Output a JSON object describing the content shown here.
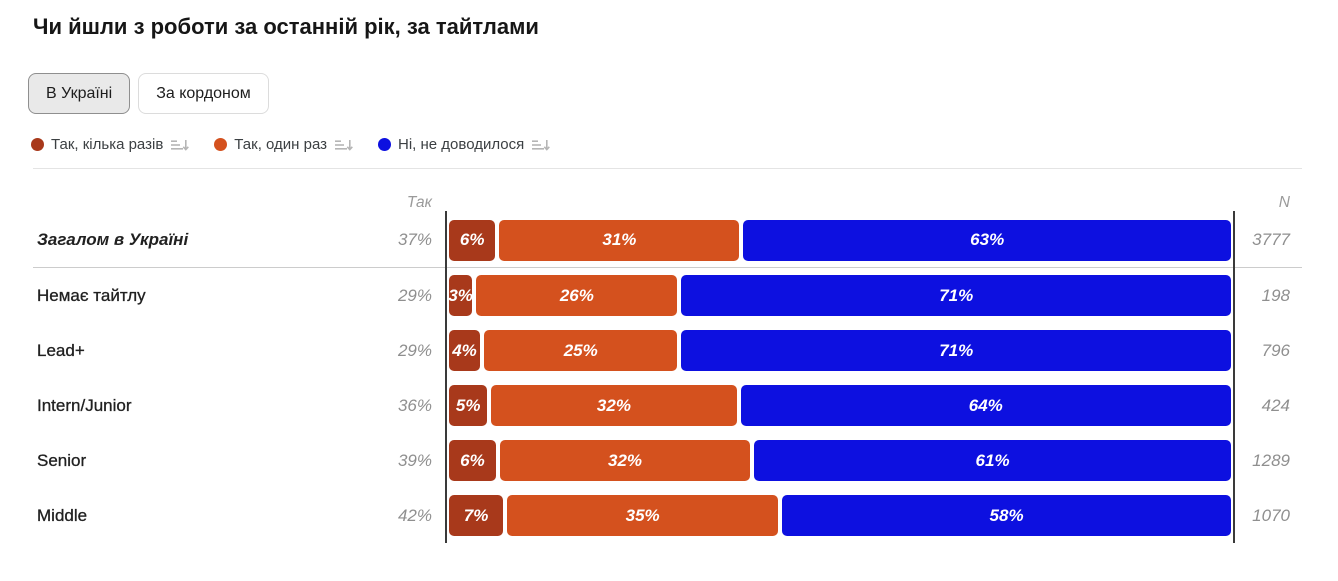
{
  "title": "Чи йшли з роботи за останній рік, за тайтлами",
  "tabs": [
    {
      "label": "В Україні",
      "active": true
    },
    {
      "label": "За кордоном",
      "active": false
    }
  ],
  "legend": [
    {
      "label": "Так, кілька разів",
      "color": "#a8391b"
    },
    {
      "label": "Так, один раз",
      "color": "#d4511e"
    },
    {
      "label": "Ні, не доводилося",
      "color": "#0d10e0"
    }
  ],
  "columns": {
    "tak_header": "Так",
    "n_header": "N"
  },
  "chart_data": {
    "type": "bar",
    "stacked": true,
    "orientation": "horizontal",
    "xlim": [
      0,
      100
    ],
    "categories": [
      "Загалом в Україні",
      "Немає тайтлу",
      "Lead+",
      "Intern/Junior",
      "Senior",
      "Middle"
    ],
    "tak_totals": [
      "37%",
      "29%",
      "29%",
      "36%",
      "39%",
      "42%"
    ],
    "series": [
      {
        "name": "Так, кілька разів",
        "color": "#a8391b",
        "values": [
          6,
          3,
          4,
          5,
          6,
          7
        ]
      },
      {
        "name": "Так, один раз",
        "color": "#d4511e",
        "values": [
          31,
          26,
          25,
          32,
          32,
          35
        ]
      },
      {
        "name": "Ні, не доводилося",
        "color": "#0d10e0",
        "values": [
          63,
          71,
          71,
          64,
          61,
          58
        ]
      }
    ],
    "n_values": [
      3777,
      198,
      796,
      424,
      1289,
      1070
    ]
  }
}
